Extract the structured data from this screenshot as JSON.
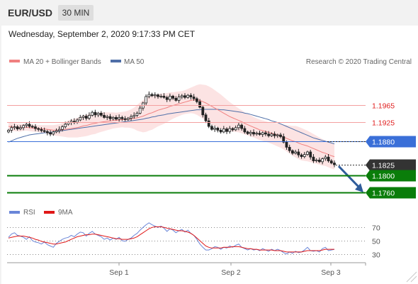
{
  "header": {
    "symbol": "EUR/USD",
    "timeframe": "30 MIN",
    "datetime": "Wednesday, September 2, 2020 9:17:33 PM CET"
  },
  "legend": {
    "ma20": "MA 20 + Bollinger Bands",
    "ma50": "MA 50",
    "credit": "Research © 2020 Trading Central",
    "rsi": "RSI",
    "ma9": "9MA"
  },
  "colors": {
    "ma20": "#f08080",
    "bollinger_fill": "#fcdede",
    "ma50": "#4f6fa8",
    "resistance": "#f4a0a0",
    "resistance_label": "#e02020",
    "pivot": "#3a6fd8",
    "support": "#0a7d0a",
    "last_price": "#333333",
    "arrow": "#2f5c9a",
    "candle_up": "#ffffff",
    "candle_down": "#222222",
    "rsi": "#6a86d8",
    "rsi_ma": "#e01818"
  },
  "chart_data": [
    {
      "type": "candlestick",
      "instrument": "EUR/USD",
      "timeframe": "30 MIN",
      "x_tick_labels": [
        "Sep 1",
        "Sep 2",
        "Sep 3"
      ],
      "ylim": [
        1.174,
        1.204
      ],
      "levels": [
        {
          "label": "1.1965",
          "value": 1.1965,
          "kind": "resistance"
        },
        {
          "label": "1.1925",
          "value": 1.1925,
          "kind": "resistance"
        },
        {
          "label": "1.1880",
          "value": 1.188,
          "kind": "pivot"
        },
        {
          "label": "1.1825",
          "value": 1.1825,
          "kind": "last-price"
        },
        {
          "label": "1.1800",
          "value": 1.18,
          "kind": "support"
        },
        {
          "label": "1.1760",
          "value": 1.176,
          "kind": "support"
        }
      ],
      "close": [
        1.1906,
        1.1912,
        1.1914,
        1.1909,
        1.1912,
        1.1917,
        1.192,
        1.1915,
        1.1914,
        1.191,
        1.1908,
        1.1905,
        1.1903,
        1.19,
        1.1897,
        1.1902,
        1.1905,
        1.1908,
        1.1914,
        1.192,
        1.1924,
        1.1927,
        1.1925,
        1.193,
        1.1936,
        1.1939,
        1.1934,
        1.1941,
        1.1948,
        1.1942,
        1.1946,
        1.1941,
        1.1936,
        1.1938,
        1.1933,
        1.1936,
        1.1932,
        1.1936,
        1.1933,
        1.1931,
        1.1934,
        1.1938,
        1.1941,
        1.1946,
        1.1958,
        1.197,
        1.1985,
        1.199,
        1.1987,
        1.1989,
        1.1985,
        1.1986,
        1.1983,
        1.1978,
        1.1986,
        1.1981,
        1.1976,
        1.1984,
        1.1987,
        1.1983,
        1.1988,
        1.1984,
        1.198,
        1.1973,
        1.196,
        1.1942,
        1.1928,
        1.1915,
        1.1908,
        1.1911,
        1.1906,
        1.1902,
        1.1909,
        1.1903,
        1.191,
        1.1907,
        1.1912,
        1.1918,
        1.191,
        1.1902,
        1.1898,
        1.1901,
        1.1897,
        1.1899,
        1.1896,
        1.19,
        1.1897,
        1.1893,
        1.1897,
        1.1893,
        1.1895,
        1.1891,
        1.1878,
        1.1866,
        1.1858,
        1.1852,
        1.1855,
        1.1848,
        1.1844,
        1.1849,
        1.1855,
        1.1843,
        1.1834,
        1.1836,
        1.1832,
        1.1839,
        1.1843,
        1.1834,
        1.1829,
        1.1825
      ],
      "ma20": [
        1.1915,
        1.1914,
        1.1913,
        1.1912,
        1.1912,
        1.1913,
        1.1913,
        1.1912,
        1.1911,
        1.191,
        1.191,
        1.1909,
        1.1909,
        1.1908,
        1.1907,
        1.1906,
        1.1906,
        1.1906,
        1.1907,
        1.1908,
        1.1909,
        1.191,
        1.1911,
        1.1912,
        1.1914,
        1.1916,
        1.1917,
        1.1919,
        1.1921,
        1.1922,
        1.1924,
        1.1925,
        1.1926,
        1.1927,
        1.1928,
        1.1929,
        1.1929,
        1.193,
        1.1931,
        1.1931,
        1.1932,
        1.1933,
        1.1934,
        1.1935,
        1.1937,
        1.1939,
        1.1942,
        1.1945,
        1.1947,
        1.195,
        1.1953,
        1.1955,
        1.1957,
        1.1959,
        1.1962,
        1.1964,
        1.1966,
        1.1968,
        1.197,
        1.1972,
        1.1974,
        1.1976,
        1.1977,
        1.1977,
        1.1976,
        1.1973,
        1.197,
        1.1966,
        1.1962,
        1.1958,
        1.1954,
        1.195,
        1.1946,
        1.1942,
        1.1938,
        1.1935,
        1.1932,
        1.1929,
        1.1926,
        1.1922,
        1.1919,
        1.1916,
        1.1913,
        1.191,
        1.1907,
        1.1905,
        1.1903,
        1.1901,
        1.1899,
        1.1897,
        1.1895,
        1.1893,
        1.189,
        1.1887,
        1.1884,
        1.1881,
        1.1879,
        1.1876,
        1.1873,
        1.1871,
        1.1869,
        1.1866,
        1.1863,
        1.186,
        1.1857,
        1.1854,
        1.1852,
        1.1849,
        1.1846,
        1.1844
      ],
      "ma50": [
        1.1878,
        1.1881,
        1.1884,
        1.1887,
        1.1889,
        1.1891,
        1.1893,
        1.1895,
        1.1896,
        1.1897,
        1.1898,
        1.1899,
        1.19,
        1.19,
        1.1901,
        1.1902,
        1.1903,
        1.1904,
        1.1905,
        1.1906,
        1.1907,
        1.1908,
        1.1909,
        1.191,
        1.1911,
        1.1912,
        1.1913,
        1.1914,
        1.1915,
        1.1916,
        1.1917,
        1.1918,
        1.1919,
        1.192,
        1.1921,
        1.1922,
        1.1923,
        1.1924,
        1.1925,
        1.1926,
        1.1927,
        1.1928,
        1.1929,
        1.193,
        1.1931,
        1.1932,
        1.1934,
        1.1935,
        1.1937,
        1.1938,
        1.194,
        1.1941,
        1.1942,
        1.1944,
        1.1945,
        1.1946,
        1.1947,
        1.1948,
        1.1949,
        1.195,
        1.1951,
        1.1952,
        1.1953,
        1.1954,
        1.1954,
        1.1955,
        1.1955,
        1.1955,
        1.1955,
        1.1955,
        1.1955,
        1.1954,
        1.1954,
        1.1953,
        1.1952,
        1.1951,
        1.195,
        1.1949,
        1.1948,
        1.1946,
        1.1945,
        1.1943,
        1.1941,
        1.1939,
        1.1937,
        1.1935,
        1.1933,
        1.1931,
        1.1928,
        1.1926,
        1.1924,
        1.1921,
        1.1918,
        1.1915,
        1.1912,
        1.1909,
        1.1906,
        1.1903,
        1.19,
        1.1897,
        1.1894,
        1.1891,
        1.1888,
        1.1886,
        1.1884,
        1.1882,
        1.188,
        1.1878,
        1.1876,
        1.1874
      ],
      "bollinger_half_width": [
        0.001,
        0.001,
        0.0009,
        0.0009,
        0.0009,
        0.0008,
        0.0008,
        0.0008,
        0.0008,
        0.0008,
        0.0008,
        0.0009,
        0.0009,
        0.001,
        0.0011,
        0.0012,
        0.0013,
        0.0014,
        0.0016,
        0.0018,
        0.002,
        0.0021,
        0.0022,
        0.0023,
        0.0024,
        0.0025,
        0.0025,
        0.0025,
        0.0025,
        0.0025,
        0.0024,
        0.0023,
        0.0022,
        0.0021,
        0.002,
        0.0019,
        0.0018,
        0.0018,
        0.0018,
        0.0019,
        0.002,
        0.0022,
        0.0025,
        0.003,
        0.0034,
        0.0038,
        0.004,
        0.004,
        0.004,
        0.0039,
        0.0038,
        0.0037,
        0.0036,
        0.0034,
        0.0033,
        0.0031,
        0.003,
        0.0029,
        0.0028,
        0.0028,
        0.0029,
        0.003,
        0.0032,
        0.0035,
        0.0038,
        0.004,
        0.0042,
        0.0043,
        0.0043,
        0.0042,
        0.0041,
        0.004,
        0.0038,
        0.0036,
        0.0034,
        0.0032,
        0.003,
        0.0028,
        0.0027,
        0.0026,
        0.0025,
        0.0025,
        0.0024,
        0.0024,
        0.0024,
        0.0024,
        0.0024,
        0.0024,
        0.0025,
        0.0026,
        0.0027,
        0.0028,
        0.0029,
        0.0031,
        0.0033,
        0.0035,
        0.0037,
        0.0038,
        0.0038,
        0.0037,
        0.0036,
        0.0035,
        0.0034,
        0.0033,
        0.0032,
        0.0031,
        0.003,
        0.003,
        0.003,
        0.003
      ],
      "forecast_arrow": {
        "from": 1.1825,
        "to": 1.176
      }
    },
    {
      "type": "line",
      "title": "RSI",
      "series_names": [
        "RSI",
        "9MA"
      ],
      "ylim": [
        20,
        80
      ],
      "y_tick_labels": [
        "70",
        "50",
        "30"
      ],
      "rsi": [
        55,
        60,
        62,
        58,
        57,
        55,
        52,
        56,
        50,
        48,
        47,
        45,
        48,
        44,
        42,
        40,
        46,
        49,
        52,
        54,
        55,
        58,
        56,
        60,
        63,
        62,
        57,
        61,
        64,
        60,
        58,
        56,
        52,
        54,
        51,
        54,
        52,
        55,
        50,
        49,
        52,
        54,
        58,
        61,
        66,
        70,
        74,
        77,
        74,
        72,
        70,
        72,
        69,
        64,
        68,
        66,
        62,
        65,
        67,
        63,
        66,
        61,
        58,
        52,
        45,
        40,
        36,
        36,
        38,
        41,
        40,
        37,
        40,
        39,
        42,
        40,
        43,
        45,
        40,
        38,
        36,
        38,
        36,
        37,
        35,
        38,
        36,
        34,
        37,
        35,
        37,
        35,
        32,
        30,
        33,
        31,
        34,
        32,
        33,
        36,
        40,
        35,
        34,
        35,
        33,
        38,
        40,
        35,
        36,
        37
      ],
      "ma9": [
        54,
        55,
        56,
        57,
        57,
        57,
        56,
        55,
        54,
        52,
        51,
        49,
        48,
        47,
        46,
        45,
        45,
        46,
        47,
        48,
        50,
        52,
        54,
        56,
        57,
        58,
        59,
        59,
        60,
        60,
        59,
        58,
        57,
        56,
        55,
        54,
        53,
        53,
        52,
        52,
        52,
        53,
        54,
        56,
        59,
        62,
        65,
        68,
        70,
        71,
        71,
        71,
        70,
        69,
        68,
        67,
        66,
        65,
        65,
        64,
        63,
        61,
        58,
        54,
        50,
        46,
        42,
        40,
        39,
        39,
        39,
        39,
        40,
        40,
        40,
        41,
        41,
        41,
        40,
        39,
        38,
        38,
        37,
        37,
        36,
        36,
        36,
        36,
        36,
        35,
        35,
        35,
        34,
        33,
        33,
        33,
        33,
        33,
        33,
        34,
        35,
        35,
        35,
        35,
        35,
        36,
        37,
        37,
        37,
        37
      ]
    }
  ]
}
